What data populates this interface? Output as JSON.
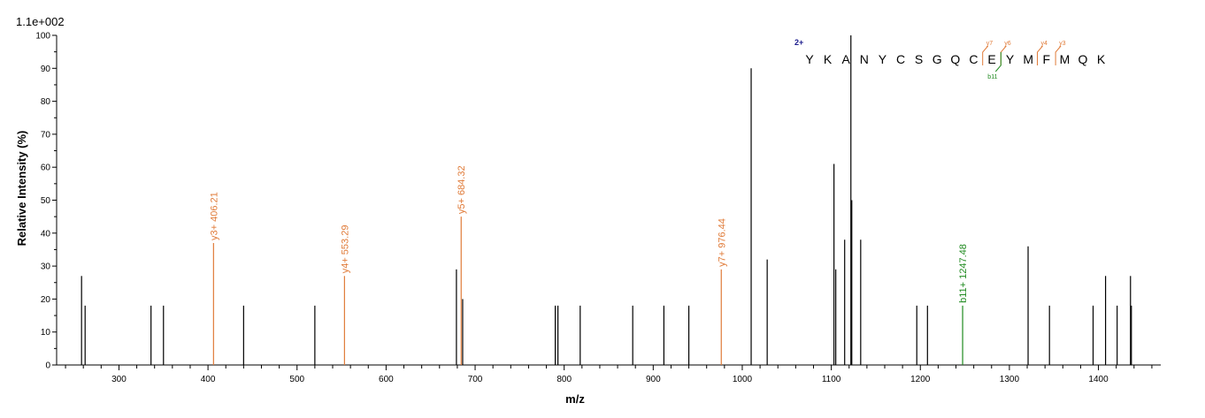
{
  "chart_data": {
    "type": "bar",
    "scale_label": "1.1e+002",
    "xlabel": "m/z",
    "ylabel": "Relative   Intensity (%)",
    "xlim": [
      230,
      1470
    ],
    "ylim": [
      0,
      100
    ],
    "x_ticks": [
      300,
      400,
      500,
      600,
      700,
      800,
      900,
      1000,
      1100,
      1200,
      1300,
      1400
    ],
    "y_ticks": [
      0,
      10,
      20,
      30,
      40,
      50,
      60,
      70,
      80,
      90,
      100
    ],
    "colors": {
      "unlabeled": "#000000",
      "y_ion": "#e07b39",
      "b_ion": "#1f8a1f",
      "charge": "#1a1a8c"
    },
    "peaks": [
      {
        "mz": 258,
        "intensity": 27
      },
      {
        "mz": 262,
        "intensity": 18
      },
      {
        "mz": 336,
        "intensity": 18
      },
      {
        "mz": 350,
        "intensity": 18
      },
      {
        "mz": 406.21,
        "intensity": 37,
        "label": "y3+ 406.21",
        "ion": "y"
      },
      {
        "mz": 440,
        "intensity": 18
      },
      {
        "mz": 520,
        "intensity": 18
      },
      {
        "mz": 553.29,
        "intensity": 27,
        "label": "y4+ 553.29",
        "ion": "y"
      },
      {
        "mz": 679,
        "intensity": 29
      },
      {
        "mz": 684.32,
        "intensity": 45,
        "label": "y5+ 684.32",
        "ion": "y"
      },
      {
        "mz": 686,
        "intensity": 20
      },
      {
        "mz": 790,
        "intensity": 18
      },
      {
        "mz": 793,
        "intensity": 18
      },
      {
        "mz": 818,
        "intensity": 18
      },
      {
        "mz": 877,
        "intensity": 18
      },
      {
        "mz": 912,
        "intensity": 18
      },
      {
        "mz": 940,
        "intensity": 18
      },
      {
        "mz": 976.44,
        "intensity": 29,
        "label": "y7+ 976.44",
        "ion": "y"
      },
      {
        "mz": 1010,
        "intensity": 90
      },
      {
        "mz": 1028,
        "intensity": 32
      },
      {
        "mz": 1103,
        "intensity": 61
      },
      {
        "mz": 1105,
        "intensity": 29
      },
      {
        "mz": 1115,
        "intensity": 38
      },
      {
        "mz": 1122,
        "intensity": 100
      },
      {
        "mz": 1123,
        "intensity": 50
      },
      {
        "mz": 1133,
        "intensity": 38
      },
      {
        "mz": 1196,
        "intensity": 18
      },
      {
        "mz": 1208,
        "intensity": 18
      },
      {
        "mz": 1247.48,
        "intensity": 18,
        "label": "b11+ 1247.48",
        "ion": "b"
      },
      {
        "mz": 1321,
        "intensity": 36
      },
      {
        "mz": 1345,
        "intensity": 18
      },
      {
        "mz": 1394,
        "intensity": 18
      },
      {
        "mz": 1408,
        "intensity": 27
      },
      {
        "mz": 1421,
        "intensity": 18
      },
      {
        "mz": 1436,
        "intensity": 27
      },
      {
        "mz": 1437,
        "intensity": 18
      }
    ],
    "sequence": {
      "charge": "2+",
      "letters": [
        "Y",
        "K",
        "A",
        "N",
        "Y",
        "C",
        "S",
        "G",
        "Q",
        "C",
        "E",
        "Y",
        "M",
        "F",
        "M",
        "Q",
        "K"
      ],
      "y_ions": [
        {
          "label": "y7",
          "before_index": 10
        },
        {
          "label": "y6",
          "before_index": 11
        },
        {
          "label": "y4",
          "before_index": 13
        },
        {
          "label": "y3",
          "before_index": 14
        }
      ],
      "b_ions": [
        {
          "label": "b11",
          "before_index": 11
        }
      ]
    }
  }
}
